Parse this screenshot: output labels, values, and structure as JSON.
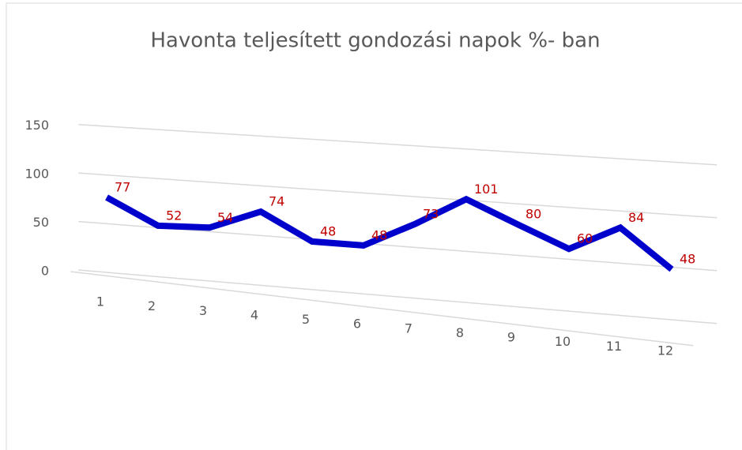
{
  "chart_data": {
    "type": "line",
    "title": "Havonta teljesített gondozási napok %- ban",
    "categories": [
      "1",
      "2",
      "3",
      "4",
      "5",
      "6",
      "7",
      "8",
      "9",
      "10",
      "11",
      "12"
    ],
    "series": [
      {
        "name": "Havonta teljesített gondozási napok %- ban",
        "color": "#0000cc",
        "values": [
          77,
          52,
          54,
          74,
          48,
          48,
          73,
          101,
          80,
          60,
          84,
          48
        ]
      }
    ],
    "ylim": [
      0,
      150
    ],
    "yticks": [
      0,
      50,
      100,
      150
    ],
    "grid": true
  }
}
